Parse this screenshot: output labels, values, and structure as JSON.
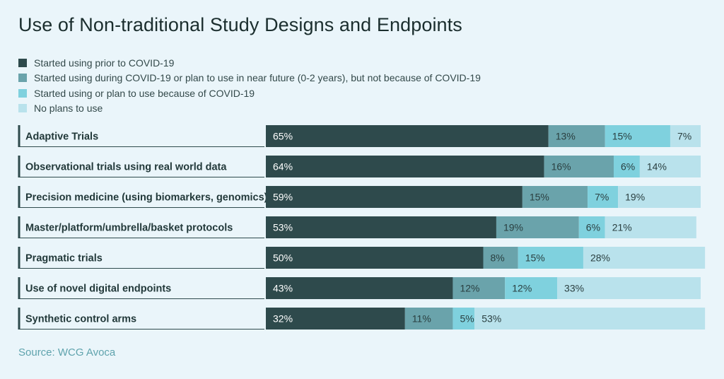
{
  "title": "Use of Non-traditional Study Designs and Endpoints",
  "source": "Source: WCG Avoca",
  "colors": {
    "background": "#eaf5fa",
    "segments": [
      "#2e4a4c",
      "#6aa3ab",
      "#7fd1de",
      "#b9e2ec"
    ],
    "row_border": "#2e4a4c"
  },
  "legend": [
    "Started using prior to COVID-19",
    "Started using during COVID-19 or plan to use in near future (0-2 years), but not because of COVID-19",
    "Started using or plan to use because of COVID-19",
    "No plans to use"
  ],
  "chart_data": {
    "type": "bar",
    "orientation": "horizontal",
    "stacked": true,
    "unit": "%",
    "xlim": [
      0,
      100
    ],
    "grid": false,
    "legend_placement": "top-left",
    "categories": [
      "Adaptive Trials",
      "Observational trials using real world data",
      "Precision medicine (using biomarkers, genomics)",
      "Master/platform/umbrella/basket protocols",
      "Pragmatic trials",
      "Use of novel digital endpoints",
      "Synthetic control arms"
    ],
    "series": [
      {
        "name": "Started using prior to COVID-19",
        "values": [
          65,
          64,
          59,
          53,
          50,
          43,
          32
        ]
      },
      {
        "name": "Started using during COVID-19 or plan to use in near future (0-2 years), but not because of COVID-19",
        "values": [
          13,
          16,
          15,
          19,
          8,
          12,
          11
        ]
      },
      {
        "name": "Started using or plan to use because of COVID-19",
        "values": [
          15,
          6,
          7,
          6,
          15,
          12,
          5
        ]
      },
      {
        "name": "No plans to use",
        "values": [
          7,
          14,
          19,
          21,
          28,
          33,
          53
        ]
      }
    ]
  }
}
